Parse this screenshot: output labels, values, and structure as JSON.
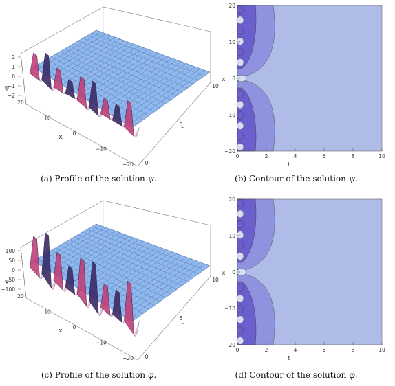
{
  "panels": [
    {
      "id": "a",
      "kind": "surface",
      "caption_label": "(a)",
      "caption_text": "Profile of the solution",
      "caption_symbol": "ψ",
      "z_label": "ψ",
      "x_label": "x",
      "t_label": "t",
      "z_ticks": [
        "2",
        "1",
        "0",
        "−1",
        "−2"
      ],
      "x_ticks": [
        "20",
        "10",
        "0",
        "−10",
        "−20"
      ],
      "t_ticks": [
        "0",
        "5",
        "10"
      ]
    },
    {
      "id": "b",
      "kind": "contour",
      "caption_label": "(b)",
      "caption_text": "Contour of the solution",
      "caption_symbol": "ψ",
      "x_label": "t",
      "y_label": "x",
      "x_ticks": [
        "0",
        "2",
        "4",
        "6",
        "8",
        "10"
      ],
      "y_ticks": [
        "20",
        "10",
        "0",
        "−10",
        "−20"
      ]
    },
    {
      "id": "c",
      "kind": "surface",
      "caption_label": "(c)",
      "caption_text": "Profile of the solution",
      "caption_symbol": "φ",
      "z_label": "φ",
      "x_label": "x",
      "t_label": "t",
      "z_ticks": [
        "100",
        "50",
        "0",
        "−50",
        "−100"
      ],
      "x_ticks": [
        "20",
        "10",
        "0",
        "−10",
        "−20"
      ],
      "t_ticks": [
        "0",
        "5",
        "10"
      ]
    },
    {
      "id": "d",
      "kind": "contour",
      "caption_label": "(d)",
      "caption_text": "Contour of the solution",
      "caption_symbol": "φ",
      "x_label": "t",
      "y_label": "x",
      "x_ticks": [
        "0",
        "2",
        "4",
        "6",
        "8",
        "10"
      ],
      "y_ticks": [
        "20",
        "10",
        "0",
        "−10",
        "−20"
      ]
    }
  ],
  "colors": {
    "plane": "#8fb8ee",
    "mesh": "#3f5f8f",
    "contour_base": "#b0bce8",
    "contour_mid": "#8f93df",
    "contour_dark": "#6a5fcc",
    "contour_light": "#d6dcf3",
    "wave_dark": "#3a2b66",
    "wave_pink": "#c0407a"
  }
}
